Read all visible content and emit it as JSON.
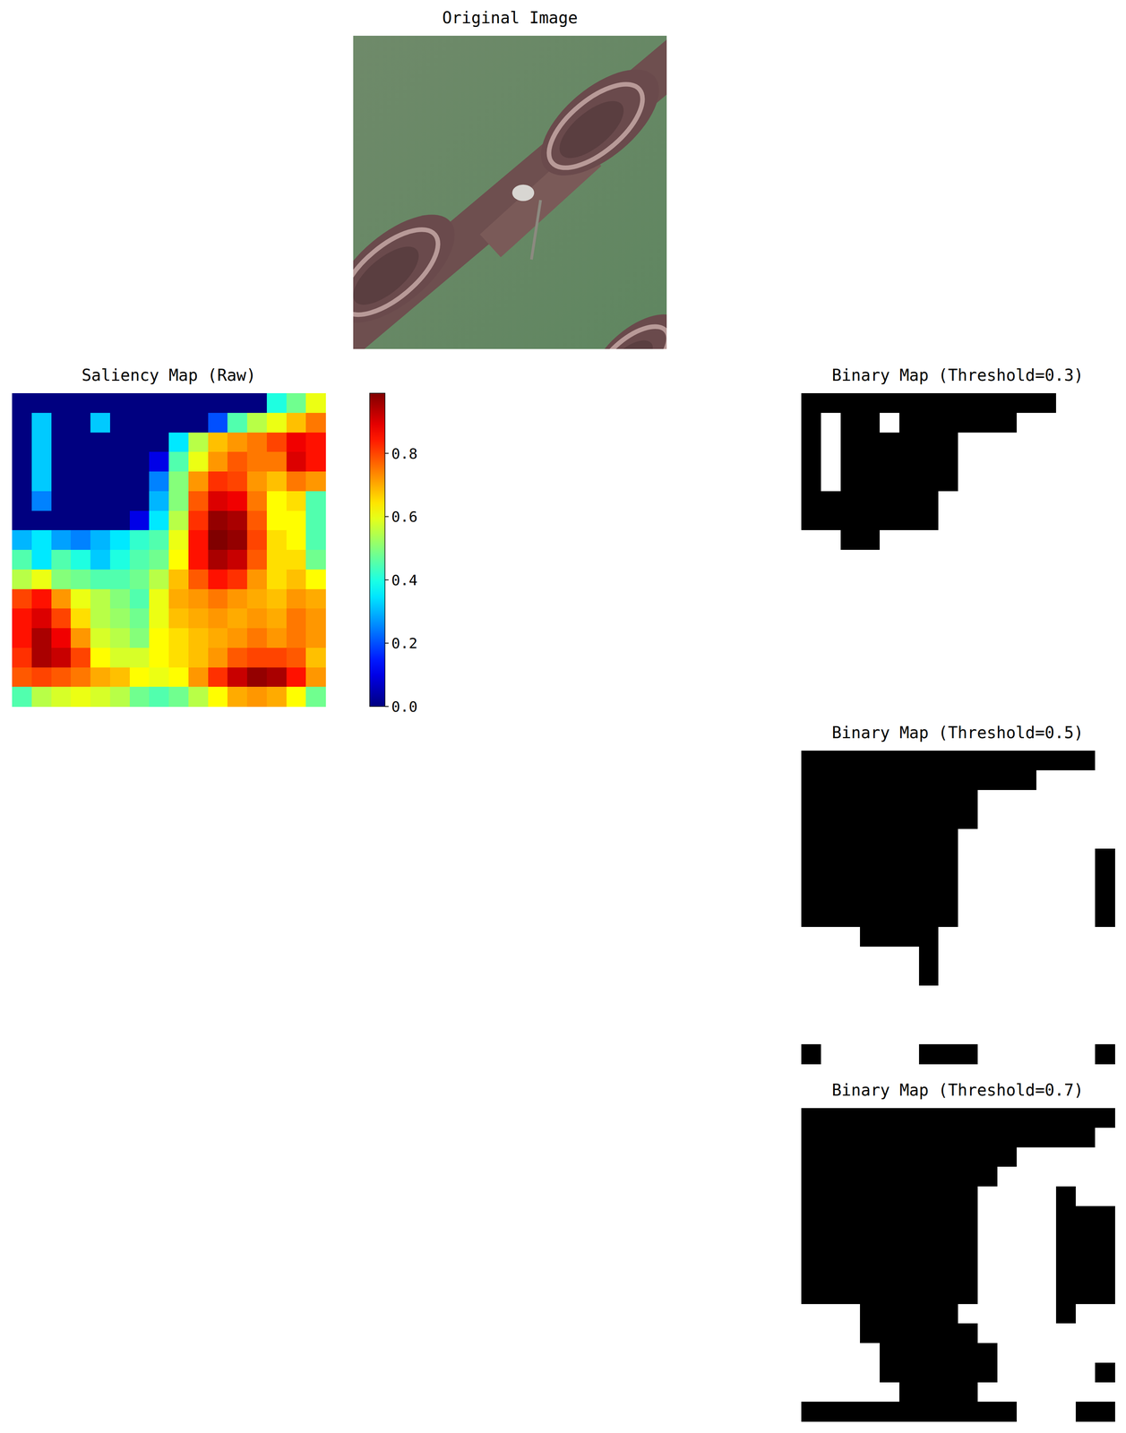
{
  "chart_data": [
    {
      "type": "image",
      "title": "Original Image"
    },
    {
      "type": "heatmap",
      "title": "Saliency Map (Raw)",
      "cells": [
        [
          0,
          0,
          0,
          0,
          0,
          0,
          0,
          0,
          0,
          0,
          0,
          0,
          0,
          0.4,
          0.48,
          0.6
        ],
        [
          0,
          0.32,
          0,
          0,
          0.32,
          0,
          0,
          0,
          0,
          0,
          0.2,
          0.45,
          0.55,
          0.6,
          0.68,
          0.75
        ],
        [
          0,
          0.32,
          0,
          0,
          0,
          0,
          0,
          0,
          0.35,
          0.55,
          0.68,
          0.72,
          0.75,
          0.8,
          0.88,
          0.85
        ],
        [
          0,
          0.32,
          0,
          0,
          0,
          0,
          0,
          0.1,
          0.45,
          0.6,
          0.72,
          0.78,
          0.75,
          0.75,
          0.9,
          0.85
        ],
        [
          0,
          0.32,
          0,
          0,
          0,
          0,
          0,
          0.25,
          0.5,
          0.72,
          0.82,
          0.8,
          0.72,
          0.68,
          0.75,
          0.72
        ],
        [
          0,
          0.25,
          0,
          0,
          0,
          0,
          0,
          0.3,
          0.5,
          0.78,
          0.9,
          0.88,
          0.75,
          0.62,
          0.65,
          0.45
        ],
        [
          0,
          0,
          0,
          0,
          0,
          0,
          0.1,
          0.35,
          0.55,
          0.82,
          0.97,
          0.95,
          0.78,
          0.62,
          0.62,
          0.45
        ],
        [
          0.3,
          0.35,
          0.28,
          0.25,
          0.3,
          0.35,
          0.42,
          0.45,
          0.6,
          0.85,
          0.99,
          0.97,
          0.8,
          0.65,
          0.62,
          0.45
        ],
        [
          0.45,
          0.35,
          0.45,
          0.4,
          0.32,
          0.4,
          0.45,
          0.48,
          0.62,
          0.85,
          0.95,
          0.92,
          0.78,
          0.65,
          0.65,
          0.48
        ],
        [
          0.55,
          0.6,
          0.5,
          0.48,
          0.45,
          0.45,
          0.48,
          0.55,
          0.68,
          0.78,
          0.85,
          0.82,
          0.72,
          0.65,
          0.68,
          0.62
        ],
        [
          0.8,
          0.85,
          0.72,
          0.6,
          0.55,
          0.5,
          0.45,
          0.6,
          0.7,
          0.72,
          0.75,
          0.72,
          0.7,
          0.68,
          0.72,
          0.7
        ],
        [
          0.85,
          0.9,
          0.8,
          0.65,
          0.55,
          0.52,
          0.48,
          0.6,
          0.68,
          0.7,
          0.72,
          0.7,
          0.72,
          0.7,
          0.75,
          0.72
        ],
        [
          0.85,
          0.95,
          0.88,
          0.72,
          0.58,
          0.55,
          0.5,
          0.62,
          0.65,
          0.68,
          0.7,
          0.72,
          0.75,
          0.72,
          0.75,
          0.72
        ],
        [
          0.82,
          0.95,
          0.92,
          0.8,
          0.62,
          0.58,
          0.58,
          0.62,
          0.65,
          0.68,
          0.72,
          0.78,
          0.8,
          0.8,
          0.78,
          0.68
        ],
        [
          0.78,
          0.8,
          0.78,
          0.75,
          0.7,
          0.68,
          0.62,
          0.6,
          0.62,
          0.72,
          0.82,
          0.92,
          0.97,
          0.95,
          0.85,
          0.72
        ],
        [
          0.45,
          0.55,
          0.58,
          0.6,
          0.58,
          0.55,
          0.48,
          0.45,
          0.48,
          0.55,
          0.62,
          0.7,
          0.72,
          0.7,
          0.62,
          0.48
        ]
      ],
      "colorbar_range": [
        0,
        0.99
      ],
      "colorbar_ticks": [
        {
          "value": 0,
          "label": "0.0"
        },
        0.2,
        0.4,
        0.6,
        0.8
      ]
    },
    {
      "type": "binary",
      "title": "Binary Map (Threshold=0.3)",
      "threshold": 0.3
    },
    {
      "type": "binary",
      "title": "Binary Map (Threshold=0.5)",
      "threshold": 0.5
    },
    {
      "type": "binary",
      "title": "Binary Map (Threshold=0.7)",
      "threshold": 0.7
    }
  ]
}
